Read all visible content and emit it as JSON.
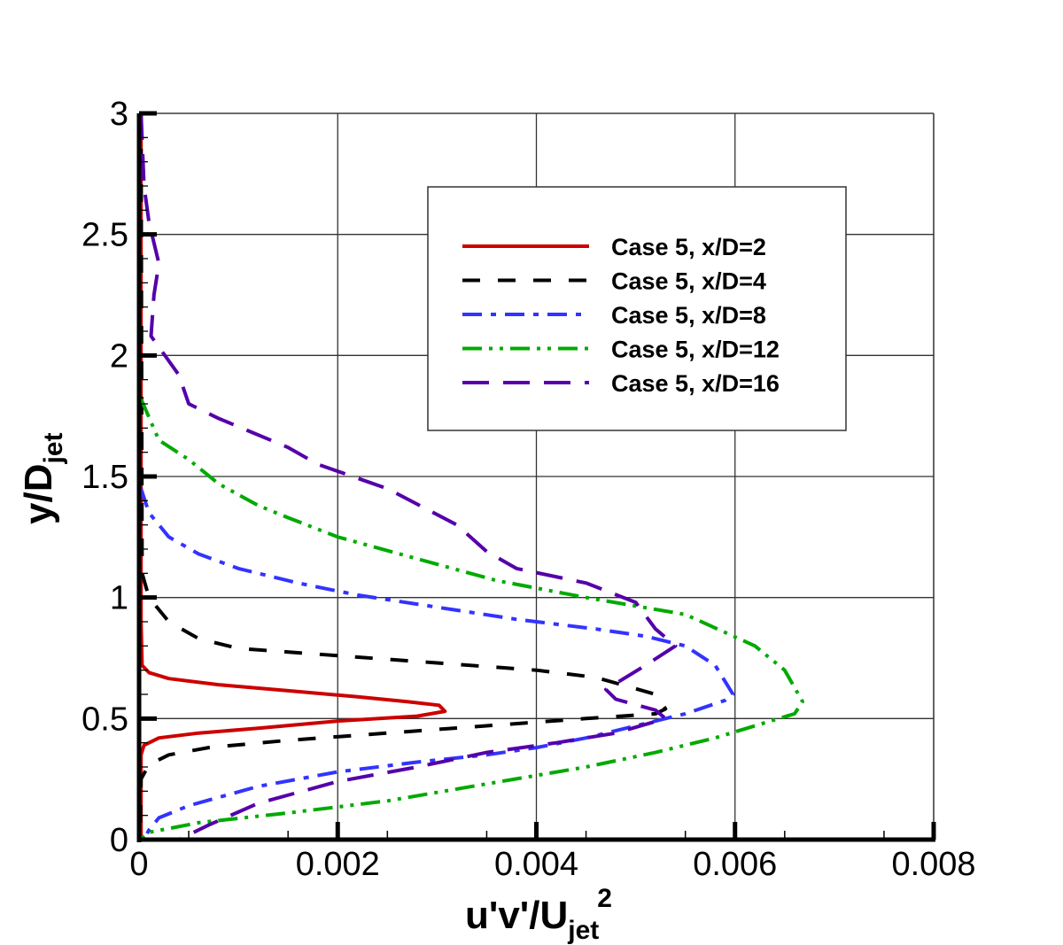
{
  "chart_data": {
    "type": "line",
    "title": "",
    "xlabel": "u'v'/U_jet^2",
    "ylabel": "y/D_jet",
    "xlim": [
      0,
      0.008
    ],
    "ylim": [
      0,
      3
    ],
    "grid": true,
    "legend_position": "upper right (inside)",
    "x_ticks": [
      "0",
      "0.002",
      "0.004",
      "0.006",
      "0.008"
    ],
    "y_ticks": [
      "0",
      "0.5",
      "1",
      "1.5",
      "2",
      "2.5",
      "3"
    ],
    "series": [
      {
        "name": "Case 5, x/D=2",
        "color": "#cc0000",
        "style": "solid",
        "points": [
          [
            2e-05,
            3.0
          ],
          [
            2e-05,
            0.9
          ],
          [
            3e-05,
            0.72
          ],
          [
            0.0001,
            0.69
          ],
          [
            0.0003,
            0.665
          ],
          [
            0.0008,
            0.64
          ],
          [
            0.0015,
            0.615
          ],
          [
            0.0022,
            0.59
          ],
          [
            0.0027,
            0.57
          ],
          [
            0.00302,
            0.555
          ],
          [
            0.00308,
            0.53
          ],
          [
            0.0028,
            0.51
          ],
          [
            0.002,
            0.49
          ],
          [
            0.0012,
            0.46
          ],
          [
            0.0006,
            0.44
          ],
          [
            0.0002,
            0.42
          ],
          [
            5e-05,
            0.39
          ],
          [
            2e-05,
            0.35
          ],
          [
            2e-05,
            0.0
          ]
        ]
      },
      {
        "name": "Case 5, x/D=4",
        "color": "#000000",
        "style": "dashed",
        "points": [
          [
            2e-05,
            3.0
          ],
          [
            3e-05,
            1.1
          ],
          [
            0.0001,
            1.0
          ],
          [
            0.0003,
            0.9
          ],
          [
            0.0006,
            0.83
          ],
          [
            0.001,
            0.79
          ],
          [
            0.002,
            0.76
          ],
          [
            0.003,
            0.73
          ],
          [
            0.004,
            0.7
          ],
          [
            0.0046,
            0.67
          ],
          [
            0.0052,
            0.6
          ],
          [
            0.0053,
            0.54
          ],
          [
            0.0052,
            0.52
          ],
          [
            0.0045,
            0.5
          ],
          [
            0.0035,
            0.47
          ],
          [
            0.0025,
            0.44
          ],
          [
            0.0015,
            0.41
          ],
          [
            0.0007,
            0.38
          ],
          [
            0.0003,
            0.35
          ],
          [
            0.0001,
            0.31
          ],
          [
            2e-05,
            0.25
          ],
          [
            1e-05,
            0.0
          ]
        ]
      },
      {
        "name": "Case 5, x/D=8",
        "color": "#3333ff",
        "style": "dash-dot",
        "points": [
          [
            2e-05,
            1.45
          ],
          [
            0.0001,
            1.35
          ],
          [
            0.0003,
            1.25
          ],
          [
            0.0006,
            1.18
          ],
          [
            0.001,
            1.12
          ],
          [
            0.0016,
            1.06
          ],
          [
            0.0022,
            1.01
          ],
          [
            0.003,
            0.96
          ],
          [
            0.0038,
            0.91
          ],
          [
            0.0046,
            0.87
          ],
          [
            0.0051,
            0.84
          ],
          [
            0.0055,
            0.8
          ],
          [
            0.0058,
            0.72
          ],
          [
            0.00598,
            0.6
          ],
          [
            0.0059,
            0.575
          ],
          [
            0.0055,
            0.52
          ],
          [
            0.005,
            0.47
          ],
          [
            0.0045,
            0.42
          ],
          [
            0.004,
            0.38
          ],
          [
            0.0035,
            0.35
          ],
          [
            0.0028,
            0.32
          ],
          [
            0.002,
            0.28
          ],
          [
            0.0012,
            0.22
          ],
          [
            0.0005,
            0.14
          ],
          [
            0.0002,
            0.09
          ],
          [
            0.0001,
            0.04
          ],
          [
            5e-05,
            0.0
          ]
        ]
      },
      {
        "name": "Case 5, x/D=12",
        "color": "#00aa00",
        "style": "dash-dot-dot",
        "points": [
          [
            2e-05,
            1.82
          ],
          [
            0.0002,
            1.65
          ],
          [
            0.0005,
            1.57
          ],
          [
            0.0008,
            1.47
          ],
          [
            0.0012,
            1.38
          ],
          [
            0.0015,
            1.33
          ],
          [
            0.002,
            1.25
          ],
          [
            0.0028,
            1.16
          ],
          [
            0.0036,
            1.07
          ],
          [
            0.0045,
            1.0
          ],
          [
            0.0055,
            0.93
          ],
          [
            0.0062,
            0.8
          ],
          [
            0.0065,
            0.7
          ],
          [
            0.00668,
            0.57
          ],
          [
            0.0066,
            0.52
          ],
          [
            0.0062,
            0.47
          ],
          [
            0.0058,
            0.42
          ],
          [
            0.0052,
            0.36
          ],
          [
            0.0045,
            0.3
          ],
          [
            0.0035,
            0.23
          ],
          [
            0.0025,
            0.16
          ],
          [
            0.0015,
            0.11
          ],
          [
            0.0006,
            0.07
          ],
          [
            0.0001,
            0.03
          ],
          [
            1e-05,
            0.0
          ]
        ]
      },
      {
        "name": "Case 5, x/D=16",
        "color": "#5500aa",
        "style": "long-dashed",
        "points": [
          [
            2e-05,
            3.0
          ],
          [
            5e-05,
            2.7
          ],
          [
            0.0001,
            2.55
          ],
          [
            0.0002,
            2.38
          ],
          [
            0.00015,
            2.25
          ],
          [
            0.00012,
            2.08
          ],
          [
            0.0004,
            1.92
          ],
          [
            0.0005,
            1.8
          ],
          [
            0.0008,
            1.74
          ],
          [
            0.0015,
            1.62
          ],
          [
            0.0018,
            1.55
          ],
          [
            0.0025,
            1.45
          ],
          [
            0.0032,
            1.3
          ],
          [
            0.0035,
            1.19
          ],
          [
            0.0038,
            1.12
          ],
          [
            0.0045,
            1.06
          ],
          [
            0.005,
            0.98
          ],
          [
            0.0052,
            0.87
          ],
          [
            0.0054,
            0.8
          ],
          [
            0.0051,
            0.72
          ],
          [
            0.0047,
            0.62
          ],
          [
            0.0048,
            0.58
          ],
          [
            0.0052,
            0.535
          ],
          [
            0.0053,
            0.5
          ],
          [
            0.0048,
            0.44
          ],
          [
            0.0042,
            0.4
          ],
          [
            0.0035,
            0.36
          ],
          [
            0.0028,
            0.3
          ],
          [
            0.002,
            0.24
          ],
          [
            0.0012,
            0.15
          ],
          [
            0.0007,
            0.06
          ],
          [
            0.0004,
            0.0
          ]
        ]
      }
    ]
  },
  "axes": {
    "x_title_main": "u'v'/U",
    "x_title_sub": "jet",
    "x_title_sup": "2",
    "y_title_main": "y/D",
    "y_title_sub": "jet"
  },
  "legend": {
    "entries": [
      {
        "label": "Case 5, x/D=2"
      },
      {
        "label": "Case 5, x/D=4"
      },
      {
        "label": "Case 5, x/D=8"
      },
      {
        "label": "Case 5, x/D=12"
      },
      {
        "label": "Case 5, x/D=16"
      }
    ]
  }
}
